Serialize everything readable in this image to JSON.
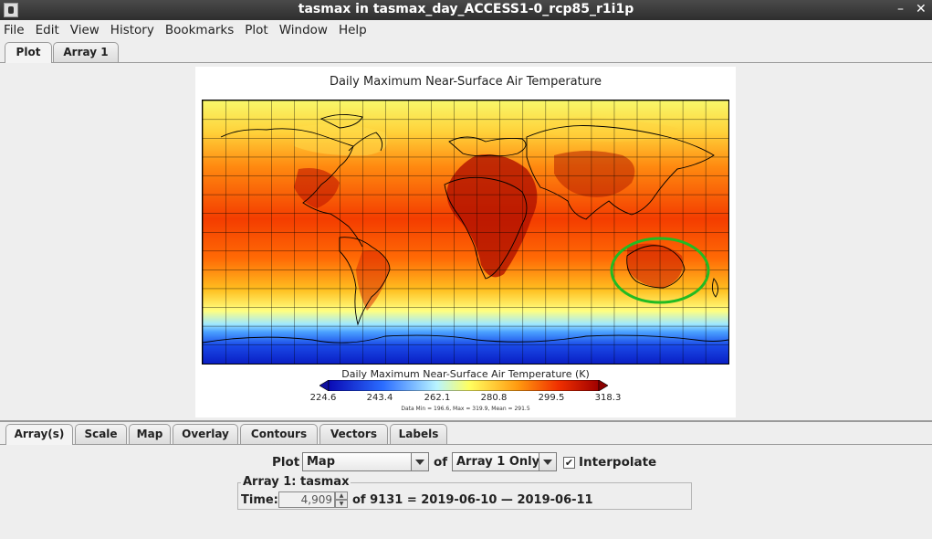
{
  "window": {
    "title": "tasmax in tasmax_day_ACCESS1-0_rcp85_r1i1p",
    "minimize": "–",
    "close": "✕"
  },
  "menu": [
    "File",
    "Edit",
    "View",
    "History",
    "Bookmarks",
    "Plot",
    "Window",
    "Help"
  ],
  "top_tabs": [
    "Plot",
    "Array 1"
  ],
  "plot": {
    "title": "Daily Maximum Near-Surface Air Temperature",
    "colorbar_title": "Daily Maximum Near-Surface Air Temperature (K)",
    "colorbar_ticks": [
      "224.6",
      "243.4",
      "262.1",
      "280.8",
      "299.5",
      "318.3"
    ],
    "stats": "Data Min = 196.6, Max = 319.9, Mean = 291.5",
    "colors": {
      "cold": "#0a1fc4",
      "mid": "#ffff80",
      "hot": "#b80000",
      "highlight": "#22bb22"
    }
  },
  "bottom_tabs": [
    "Array(s)",
    "Scale",
    "Map",
    "Overlay",
    "Contours",
    "Vectors",
    "Labels"
  ],
  "controls": {
    "plot_label": "Plot",
    "plot_type": "Map",
    "of_label": "of",
    "array_select": "Array 1 Only",
    "interpolate_label": "Interpolate",
    "interpolate_checked": true,
    "group_label": "Array 1: tasmax",
    "time_label": "Time:",
    "time_value": "4,909",
    "time_info": "of 9131 = 2019-06-10 — 2019-06-11"
  }
}
